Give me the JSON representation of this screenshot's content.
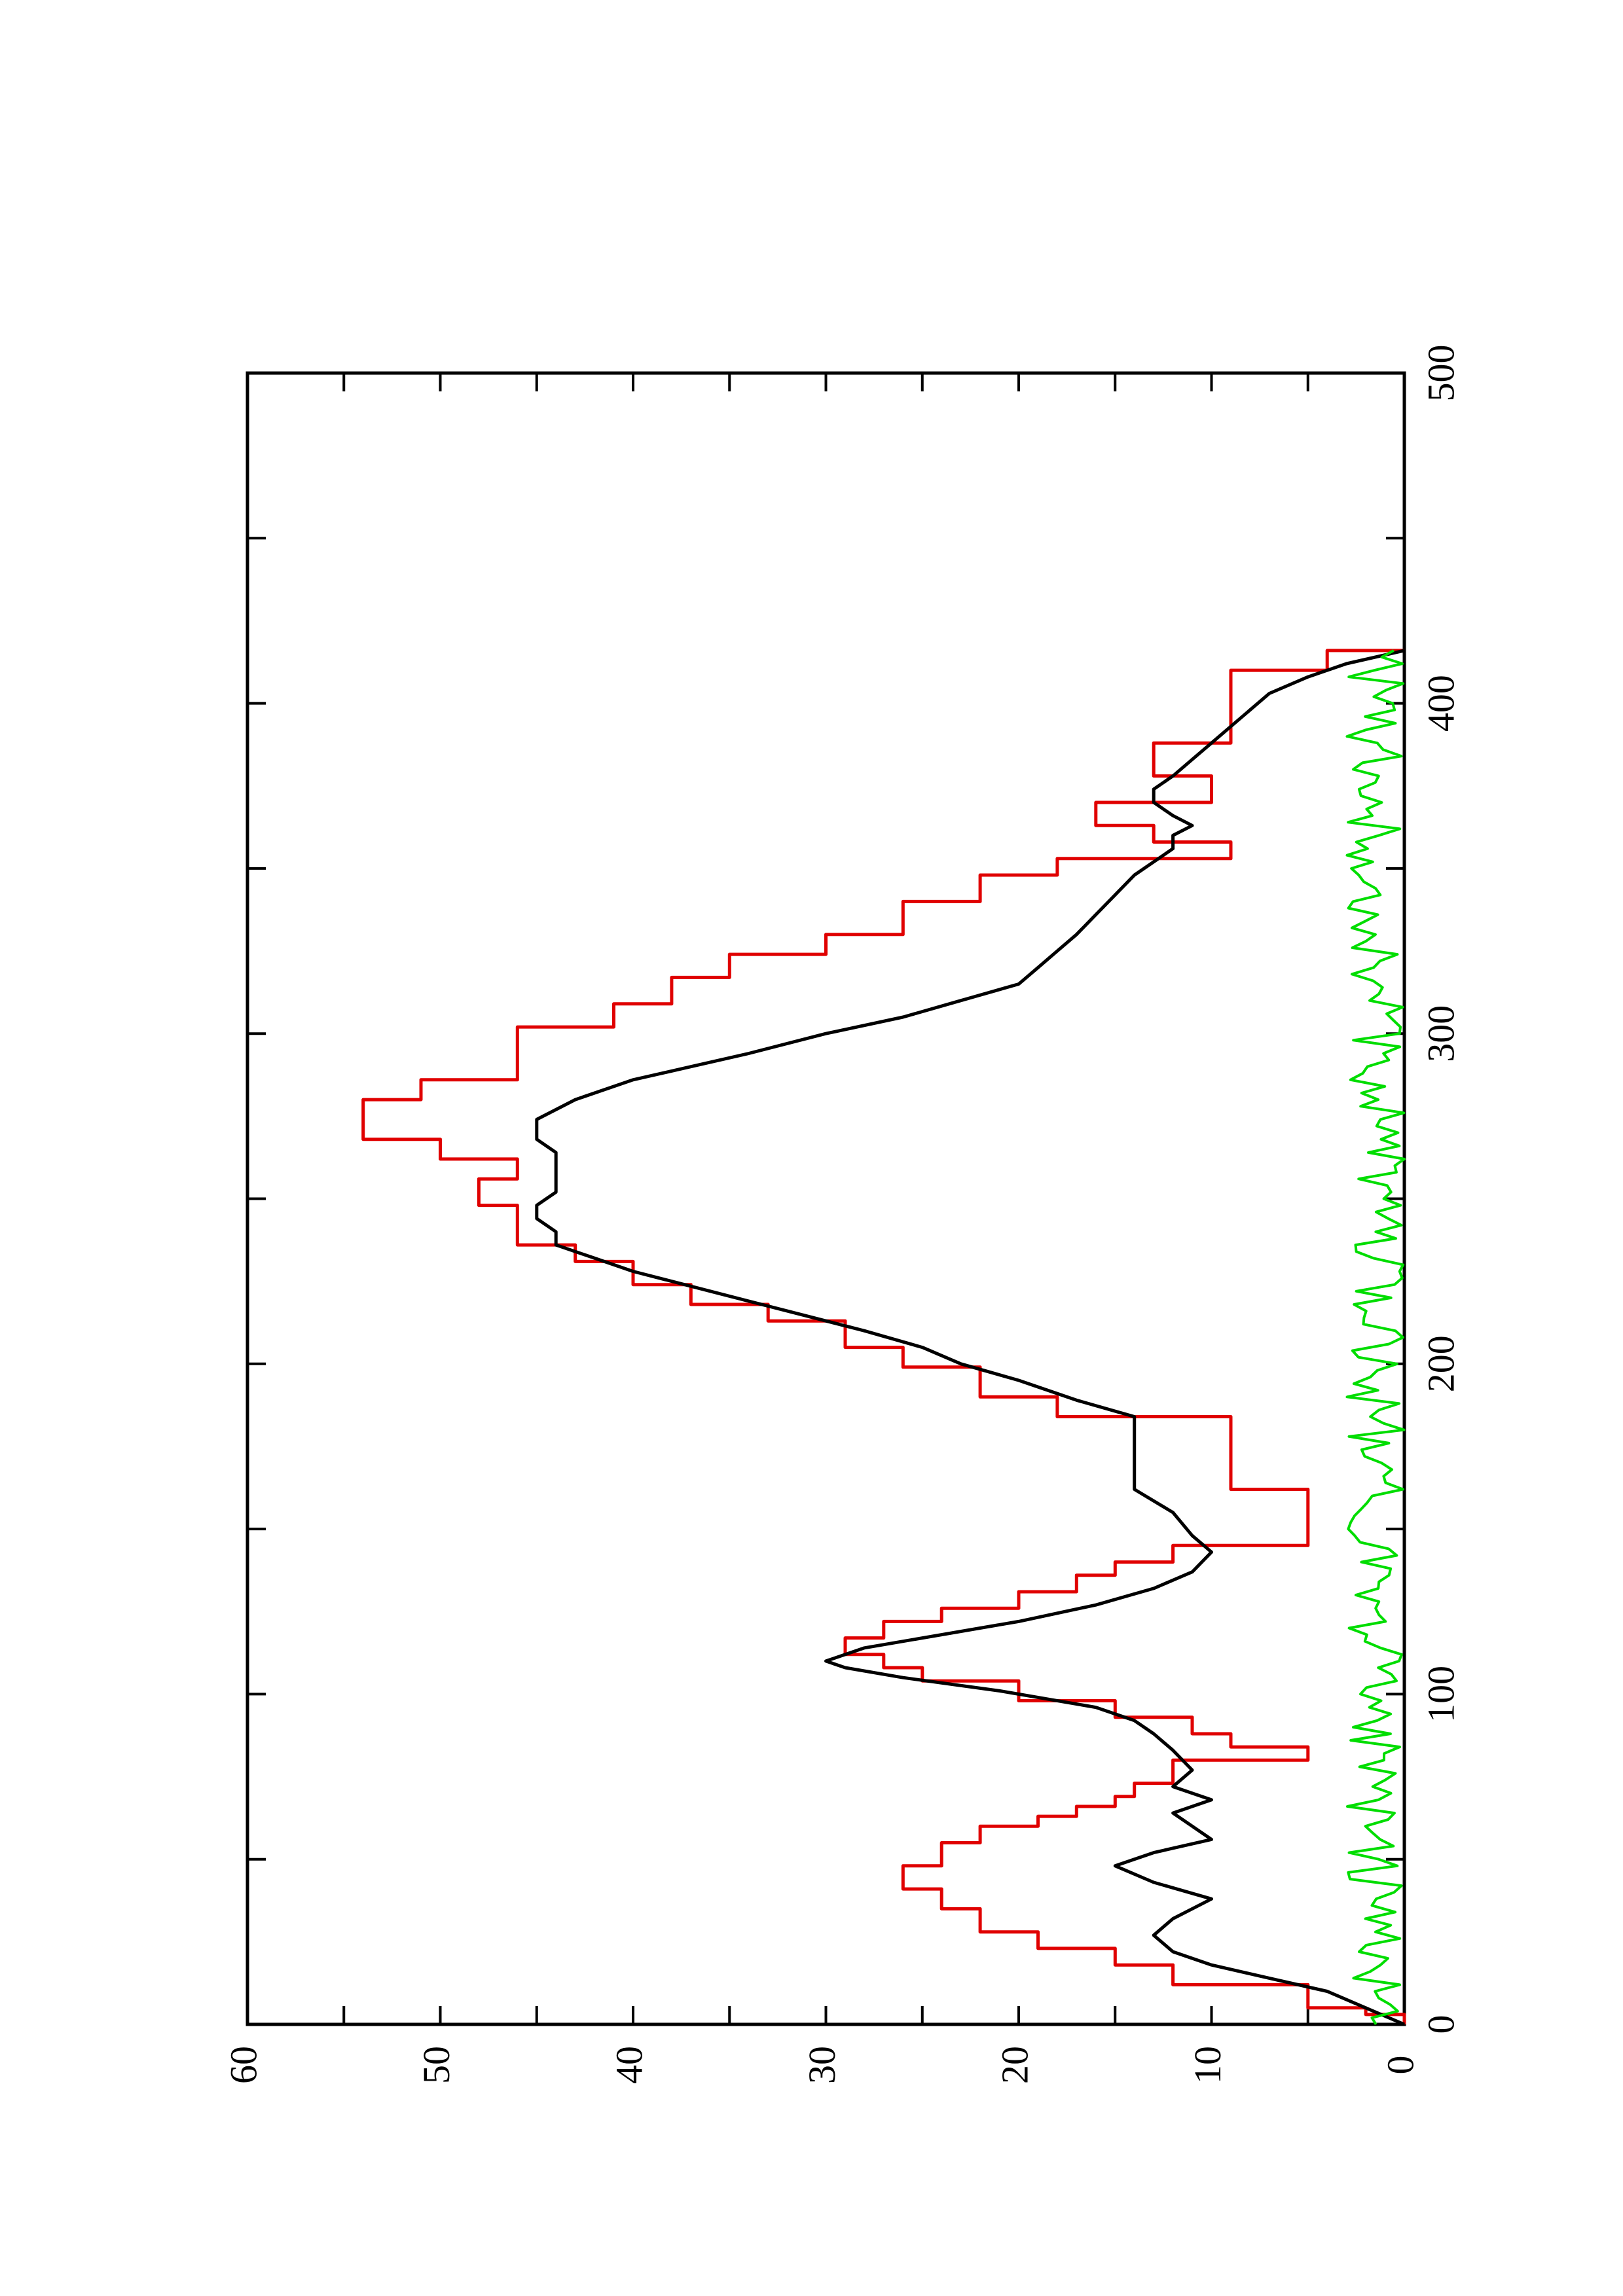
{
  "colors": {
    "axis": "#000000",
    "red_series": "#e00000",
    "black_series": "#000000",
    "green_series": "#00dd00"
  },
  "chart_data": {
    "type": "line",
    "orientation": "rotated-90-ccw",
    "title": "",
    "xlabel": "",
    "ylabel": "",
    "xlim": [
      0,
      500
    ],
    "ylim": [
      0,
      60
    ],
    "x_ticks": [
      0,
      100,
      200,
      300,
      400,
      500
    ],
    "y_ticks": [
      0,
      10,
      20,
      30,
      40,
      50,
      60
    ],
    "x_tick_labels": [
      "0",
      "100",
      "200",
      "300",
      "400",
      "500"
    ],
    "y_tick_labels": [
      "0",
      "10",
      "20",
      "30",
      "40",
      "50",
      "60"
    ],
    "grid": false,
    "legend": "none",
    "series": [
      {
        "color_key": "red_series",
        "shape": "step",
        "x": [
          0,
          3,
          5,
          12,
          18,
          23,
          28,
          35,
          41,
          48,
          55,
          60,
          63,
          66,
          69,
          73,
          80,
          84,
          88,
          93,
          98,
          104,
          108,
          112,
          117,
          122,
          126,
          131,
          136,
          140,
          145,
          157,
          162,
          169,
          178,
          184,
          190,
          199,
          205,
          213,
          218,
          224,
          231,
          236,
          242,
          248,
          256,
          262,
          268,
          272,
          280,
          286,
          291,
          302,
          309,
          317,
          324,
          330,
          340,
          348,
          353,
          358,
          363,
          370,
          378,
          383,
          388,
          396,
          406,
          410,
          416
        ],
        "y": [
          0,
          2,
          5,
          12,
          15,
          19,
          22,
          24,
          26,
          24,
          22,
          19,
          17,
          15,
          14,
          12,
          5,
          9,
          11,
          15,
          20,
          25,
          27,
          29,
          27,
          24,
          20,
          17,
          15,
          12,
          5,
          5,
          9,
          9,
          9,
          18,
          22,
          26,
          29,
          33,
          37,
          40,
          43,
          46,
          46,
          48,
          46,
          50,
          54,
          54,
          51,
          46,
          46,
          41,
          38,
          35,
          30,
          26,
          22,
          18,
          9,
          13,
          16,
          10,
          13,
          13,
          9,
          9,
          9,
          4,
          0
        ]
      },
      {
        "color_key": "black_series",
        "shape": "line",
        "x": [
          0,
          5,
          10,
          14,
          18,
          22,
          27,
          32,
          38,
          43,
          48,
          52,
          56,
          60,
          64,
          68,
          72,
          77,
          83,
          88,
          92,
          96,
          101,
          105,
          108,
          110,
          114,
          118,
          122,
          127,
          132,
          137,
          143,
          148,
          155,
          162,
          170,
          178,
          184,
          189,
          195,
          200,
          205,
          210,
          216,
          222,
          228,
          232,
          236,
          240,
          244,
          248,
          252,
          256,
          260,
          264,
          268,
          274,
          280,
          286,
          290,
          294,
          300,
          305,
          310,
          315,
          320,
          325,
          330,
          336,
          342,
          348,
          352,
          356,
          360,
          363,
          366,
          370,
          374,
          378,
          383,
          388,
          393,
          398,
          403,
          408,
          412,
          416
        ],
        "y": [
          0,
          2,
          4,
          7,
          10,
          12,
          13,
          12,
          10,
          13,
          15,
          13,
          10,
          11,
          12,
          10,
          12,
          11,
          12,
          13,
          14,
          16,
          21,
          26,
          29,
          30,
          28,
          24,
          20,
          16,
          13,
          11,
          10,
          11,
          12,
          14,
          14,
          14,
          14,
          17,
          20,
          23,
          25,
          28,
          32,
          36,
          40,
          42,
          44,
          44,
          45,
          45,
          44,
          44,
          44,
          44,
          45,
          45,
          43,
          40,
          37,
          34,
          30,
          26,
          23,
          20,
          19,
          18,
          17,
          16,
          15,
          14,
          13,
          12,
          12,
          11,
          12,
          13,
          13,
          12,
          11,
          10,
          9,
          8,
          7,
          5,
          3,
          0
        ]
      },
      {
        "color_key": "green_series",
        "shape": "noisy-line",
        "x_start": 0,
        "x_end": 416,
        "x_step": 2,
        "y_typical_range": [
          0,
          3
        ]
      }
    ]
  }
}
